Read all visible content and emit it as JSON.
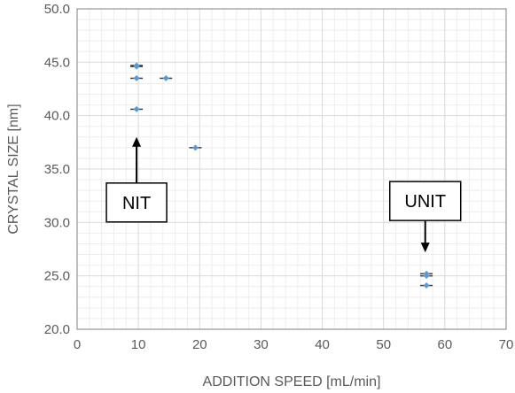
{
  "chart_data": {
    "type": "scatter",
    "xlabel": "ADDITION SPEED [mL/min]",
    "ylabel": "CRYSTAL SIZE [nm]",
    "xlim": [
      0,
      70
    ],
    "ylim": [
      20,
      50
    ],
    "x_ticks": [
      "0",
      "10",
      "20",
      "30",
      "40",
      "50",
      "60",
      "70"
    ],
    "y_ticks": [
      "20.0",
      "25.0",
      "30.0",
      "35.0",
      "40.0",
      "45.0",
      "50.0"
    ],
    "grid": true,
    "minor_grid": true,
    "series": [
      {
        "points": [
          {
            "x": 9.7,
            "y": 44.7
          },
          {
            "x": 9.7,
            "y": 44.6
          },
          {
            "x": 9.7,
            "y": 43.5
          },
          {
            "x": 14.5,
            "y": 43.5
          },
          {
            "x": 9.7,
            "y": 40.6
          },
          {
            "x": 19.3,
            "y": 37.0
          },
          {
            "x": 57.0,
            "y": 25.2
          },
          {
            "x": 57.0,
            "y": 25.0
          },
          {
            "x": 57.0,
            "y": 24.1
          }
        ]
      }
    ],
    "annotations": [
      {
        "label": "NIT",
        "arrow": "up",
        "target": {
          "x": 9.7,
          "y": 38.0
        }
      },
      {
        "label": "UNIT",
        "arrow": "down",
        "target": {
          "x": 56.8,
          "y": 27.2
        }
      }
    ],
    "colors": {
      "marker": "#5b9bd5",
      "marker_dark": "#404040",
      "grid_major": "#d9d9d9",
      "grid_minor": "#eeeeee",
      "axis": "#7f7f7f"
    }
  }
}
